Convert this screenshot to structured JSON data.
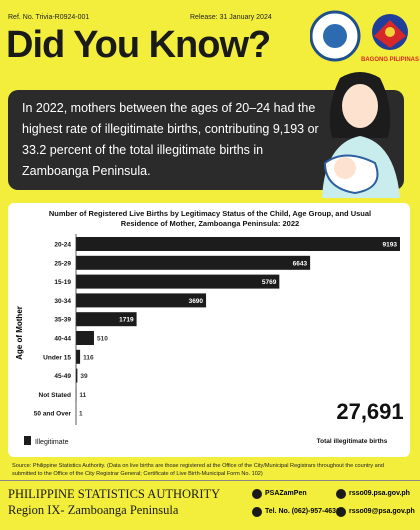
{
  "header": {
    "ref": "Ref. No. Trivia-R0924-001",
    "release": "Release: 31 January 2024",
    "title": "Did You Know?",
    "logo_text": "BAGONG PILIPINAS"
  },
  "callout": "In 2022, mothers between the ages of 20–24 had the highest rate of illegitimate births, contributing 9,193 or 33.2 percent of the total illegitimate births in Zamboanga Peninsula.",
  "chart_data": {
    "type": "hbar",
    "title": "Number of Registered Live Births by Legitimacy Status of the Child, Age Group, and Usual Residence of Mother, Zamboanga Peninsula: 2022",
    "y_label": "Age of Mother",
    "categories": [
      "20-24",
      "25-29",
      "15-19",
      "30-34",
      "35-39",
      "40-44",
      "Under 15",
      "45-49",
      "Not Stated",
      "50 and Over"
    ],
    "series": [
      {
        "name": "Illegitimate",
        "color": "#1c1c1c",
        "values": [
          9193,
          6643,
          5769,
          3690,
          1719,
          510,
          116,
          39,
          11,
          1
        ]
      }
    ],
    "total": "27,691",
    "total_caption": "Total illegitimate births"
  },
  "source": "Source: Philippine Statistics Authority. (Data on live births are those registered at the Office of the City/Municipal Registrars throughout the country and submitted to the Office of the City Registrar General; Certificate of Live Birth-Municipal Form No. 102)",
  "footer": {
    "org": "PHILIPPINE STATISTICS AUTHORITY",
    "region": "Region IX- Zamboanga Peninsula",
    "facebook": "PSAZamPen",
    "tel": "Tel. No. (062)-957-4636",
    "web": "rsso09.psa.gov.ph",
    "email": "rsso09@psa.gov.ph"
  }
}
